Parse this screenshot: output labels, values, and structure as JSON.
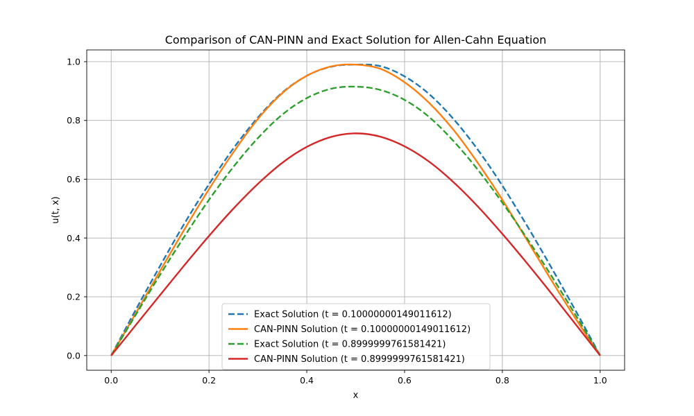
{
  "chart_data": {
    "type": "line",
    "title": "Comparison of CAN-PINN and Exact Solution for Allen-Cahn Equation",
    "xlabel": "x",
    "ylabel": "u(t, x)",
    "xlim": [
      -0.05,
      1.05
    ],
    "ylim": [
      -0.05,
      1.04
    ],
    "xticks": [
      0.0,
      0.2,
      0.4,
      0.6,
      0.8,
      1.0
    ],
    "xtick_labels": [
      "0.0",
      "0.2",
      "0.4",
      "0.6",
      "0.8",
      "1.0"
    ],
    "yticks": [
      0.0,
      0.2,
      0.4,
      0.6,
      0.8,
      1.0
    ],
    "ytick_labels": [
      "0.0",
      "0.2",
      "0.4",
      "0.6",
      "0.8",
      "1.0"
    ],
    "grid": true,
    "legend_position": "lower-center",
    "x": [
      0.0,
      0.05,
      0.1,
      0.15,
      0.2,
      0.25,
      0.3,
      0.35,
      0.4,
      0.45,
      0.5,
      0.55,
      0.6,
      0.65,
      0.7,
      0.75,
      0.8,
      0.85,
      0.9,
      0.95,
      1.0
    ],
    "series": [
      {
        "name": "Exact Solution (t = 0.10000000149011612)",
        "color": "#1f77b4",
        "dash": "dashed",
        "values": [
          0.0,
          0.155,
          0.305,
          0.45,
          0.583,
          0.705,
          0.81,
          0.895,
          0.952,
          0.983,
          0.99,
          0.985,
          0.95,
          0.89,
          0.805,
          0.7,
          0.578,
          0.443,
          0.3,
          0.152,
          0.0
        ]
      },
      {
        "name": "CAN-PINN Solution (t = 0.10000000149011612)",
        "color": "#ff7f0e",
        "dash": "solid",
        "values": [
          0.0,
          0.143,
          0.288,
          0.43,
          0.566,
          0.692,
          0.805,
          0.893,
          0.952,
          0.984,
          0.99,
          0.976,
          0.93,
          0.86,
          0.768,
          0.655,
          0.53,
          0.394,
          0.257,
          0.125,
          0.0
        ]
      },
      {
        "name": "Exact Solution (t = 0.8999999761581421)",
        "color": "#2ca02c",
        "dash": "dashed",
        "values": [
          0.0,
          0.138,
          0.275,
          0.406,
          0.53,
          0.642,
          0.74,
          0.82,
          0.876,
          0.908,
          0.915,
          0.904,
          0.87,
          0.812,
          0.73,
          0.632,
          0.52,
          0.4,
          0.272,
          0.137,
          0.0
        ]
      },
      {
        "name": "CAN-PINN Solution (t = 0.8999999761581421)",
        "color": "#d62728",
        "dash": "solid",
        "values": [
          0.0,
          0.103,
          0.206,
          0.308,
          0.407,
          0.5,
          0.584,
          0.656,
          0.71,
          0.744,
          0.756,
          0.745,
          0.712,
          0.66,
          0.59,
          0.507,
          0.414,
          0.315,
          0.212,
          0.106,
          0.0
        ]
      }
    ]
  }
}
